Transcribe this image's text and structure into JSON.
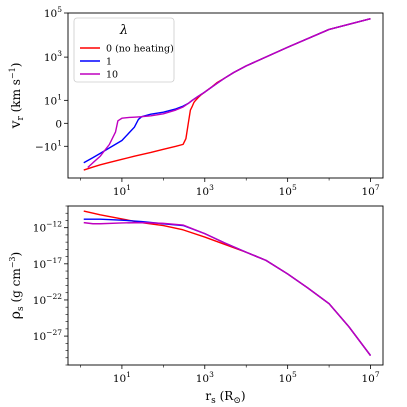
{
  "chart_data": [
    {
      "type": "line",
      "panel": "top",
      "xscale": "log",
      "yscale": "symlog",
      "xlim": [
        0.5,
        20000000
      ],
      "ylim": [
        -300,
        100000
      ],
      "xticks": [
        {
          "v": 10,
          "m": "10",
          "e": "1"
        },
        {
          "v": 1000,
          "m": "10",
          "e": "3"
        },
        {
          "v": 100000,
          "m": "10",
          "e": "5"
        },
        {
          "v": 10000000,
          "m": "10",
          "e": "7"
        }
      ],
      "yticks": [
        {
          "v": 100000,
          "m": "10",
          "e": "5"
        },
        {
          "v": 1000,
          "m": "10",
          "e": "3"
        },
        {
          "v": 10,
          "m": "10",
          "e": "1"
        },
        {
          "v": 0,
          "m": "0",
          "e": ""
        },
        {
          "v": -10,
          "m": "−10",
          "e": "1"
        }
      ],
      "ylabel": {
        "main": "v",
        "sub": "r",
        "unit": " (km s",
        "sup": "−1",
        "close": ")"
      },
      "legend": {
        "title": "λ",
        "placement": "upper-left",
        "entries": [
          {
            "label": "0 (no heating)",
            "color": "#ff0000"
          },
          {
            "label": "1",
            "color": "#0000ff"
          },
          {
            "label": "10",
            "color": "#bf00bf"
          }
        ]
      },
      "series": [
        {
          "name": "0 (no heating)",
          "color": "#ff0000",
          "x": [
            1.2,
            2,
            3,
            5,
            10,
            20,
            50,
            100,
            200,
            300,
            350,
            400,
            450,
            500,
            550,
            600,
            700,
            800,
            1000,
            1500,
            2000,
            3000,
            5000,
            10000,
            100000,
            1000000,
            10000000
          ],
          "y": [
            -130,
            -95,
            -75,
            -58,
            -42,
            -30,
            -20,
            -14,
            -10,
            -8,
            -4,
            0,
            3,
            5,
            8,
            10,
            14,
            18,
            25,
            45,
            70,
            110,
            200,
            400,
            2800,
            18000,
            55000
          ]
        },
        {
          "name": "1",
          "color": "#0000ff",
          "x": [
            1.2,
            2,
            3,
            5,
            10,
            20,
            25,
            30,
            50,
            100,
            200,
            300,
            400,
            500,
            700,
            1000,
            2000,
            3000,
            5000,
            10000,
            100000,
            1000000,
            10000000
          ],
          "y": [
            -60,
            -35,
            -22,
            -12,
            -5,
            -0.5,
            0.5,
            1,
            1.6,
            2.2,
            3.5,
            5,
            7,
            10,
            16,
            25,
            65,
            110,
            200,
            400,
            2800,
            18000,
            55000
          ]
        },
        {
          "name": "10",
          "color": "#bf00bf",
          "x": [
            1.5,
            2,
            3,
            5,
            7,
            8,
            10,
            15,
            20,
            30,
            50,
            100,
            200,
            300,
            400,
            500,
            700,
            1000,
            2000,
            3000,
            5000,
            10000,
            100000,
            1000000,
            10000000
          ],
          "y": [
            -100,
            -60,
            -30,
            -8,
            -1.5,
            0.3,
            0.7,
            0.85,
            0.9,
            1,
            1.2,
            1.7,
            3,
            4.5,
            7,
            10,
            16,
            25,
            65,
            110,
            200,
            400,
            2800,
            18000,
            55000
          ]
        }
      ]
    },
    {
      "type": "line",
      "panel": "bottom",
      "xscale": "log",
      "yscale": "log",
      "xlim": [
        0.5,
        20000000
      ],
      "ylim": [
        1e-31,
        1e-09
      ],
      "xticks": [
        {
          "v": 10,
          "m": "10",
          "e": "1"
        },
        {
          "v": 1000,
          "m": "10",
          "e": "3"
        },
        {
          "v": 100000,
          "m": "10",
          "e": "5"
        },
        {
          "v": 10000000,
          "m": "10",
          "e": "7"
        }
      ],
      "yticks": [
        {
          "v": 1e-12,
          "m": "10",
          "e": "−12"
        },
        {
          "v": 1e-17,
          "m": "10",
          "e": "−17"
        },
        {
          "v": 1e-22,
          "m": "10",
          "e": "−22"
        },
        {
          "v": 1e-27,
          "m": "10",
          "e": "−27"
        }
      ],
      "xlabel": {
        "main": "r",
        "sub": "s",
        "unit": " (R",
        "sub2": "⊙",
        "close": ")"
      },
      "ylabel": {
        "main": "ρ",
        "sub": "s",
        "unit": " (g cm",
        "sup": "−3",
        "close": ")"
      },
      "series": [
        {
          "name": "0 (no heating)",
          "color": "#ff0000",
          "x": [
            1.2,
            3,
            10,
            30,
            100,
            300,
            1000,
            3000,
            10000,
            30000,
            100000,
            300000,
            1000000,
            3000000,
            10000000
          ],
          "y": [
            2e-10,
            6e-11,
            1.6e-11,
            5e-12,
            2e-12,
            5e-13,
            5e-14,
            5e-15,
            4e-16,
            3e-17,
            4e-19,
            5e-21,
            3e-23,
            2e-26,
            2e-30
          ]
        },
        {
          "name": "1",
          "color": "#0000ff",
          "x": [
            1.2,
            3,
            10,
            30,
            100,
            300,
            1000,
            3000,
            10000,
            30000,
            100000,
            300000,
            1000000,
            3000000,
            10000000
          ],
          "y": [
            1.5e-11,
            1.5e-11,
            1.1e-11,
            7e-12,
            3.5e-12,
            2e-12,
            1.5e-13,
            8e-15,
            4e-16,
            3e-17,
            4e-19,
            5e-21,
            3e-23,
            2e-26,
            2e-30
          ]
        },
        {
          "name": "10",
          "color": "#bf00bf",
          "x": [
            1.2,
            2,
            3,
            10,
            30,
            100,
            300,
            1000,
            3000,
            10000,
            30000,
            100000,
            300000,
            1000000,
            3000000,
            10000000
          ],
          "y": [
            5e-12,
            3.5e-12,
            3.5e-12,
            4.5e-12,
            5e-12,
            4e-12,
            2.3e-12,
            1.5e-13,
            8e-15,
            4e-16,
            3e-17,
            4e-19,
            5e-21,
            3e-23,
            2e-26,
            2e-30
          ]
        }
      ]
    }
  ]
}
